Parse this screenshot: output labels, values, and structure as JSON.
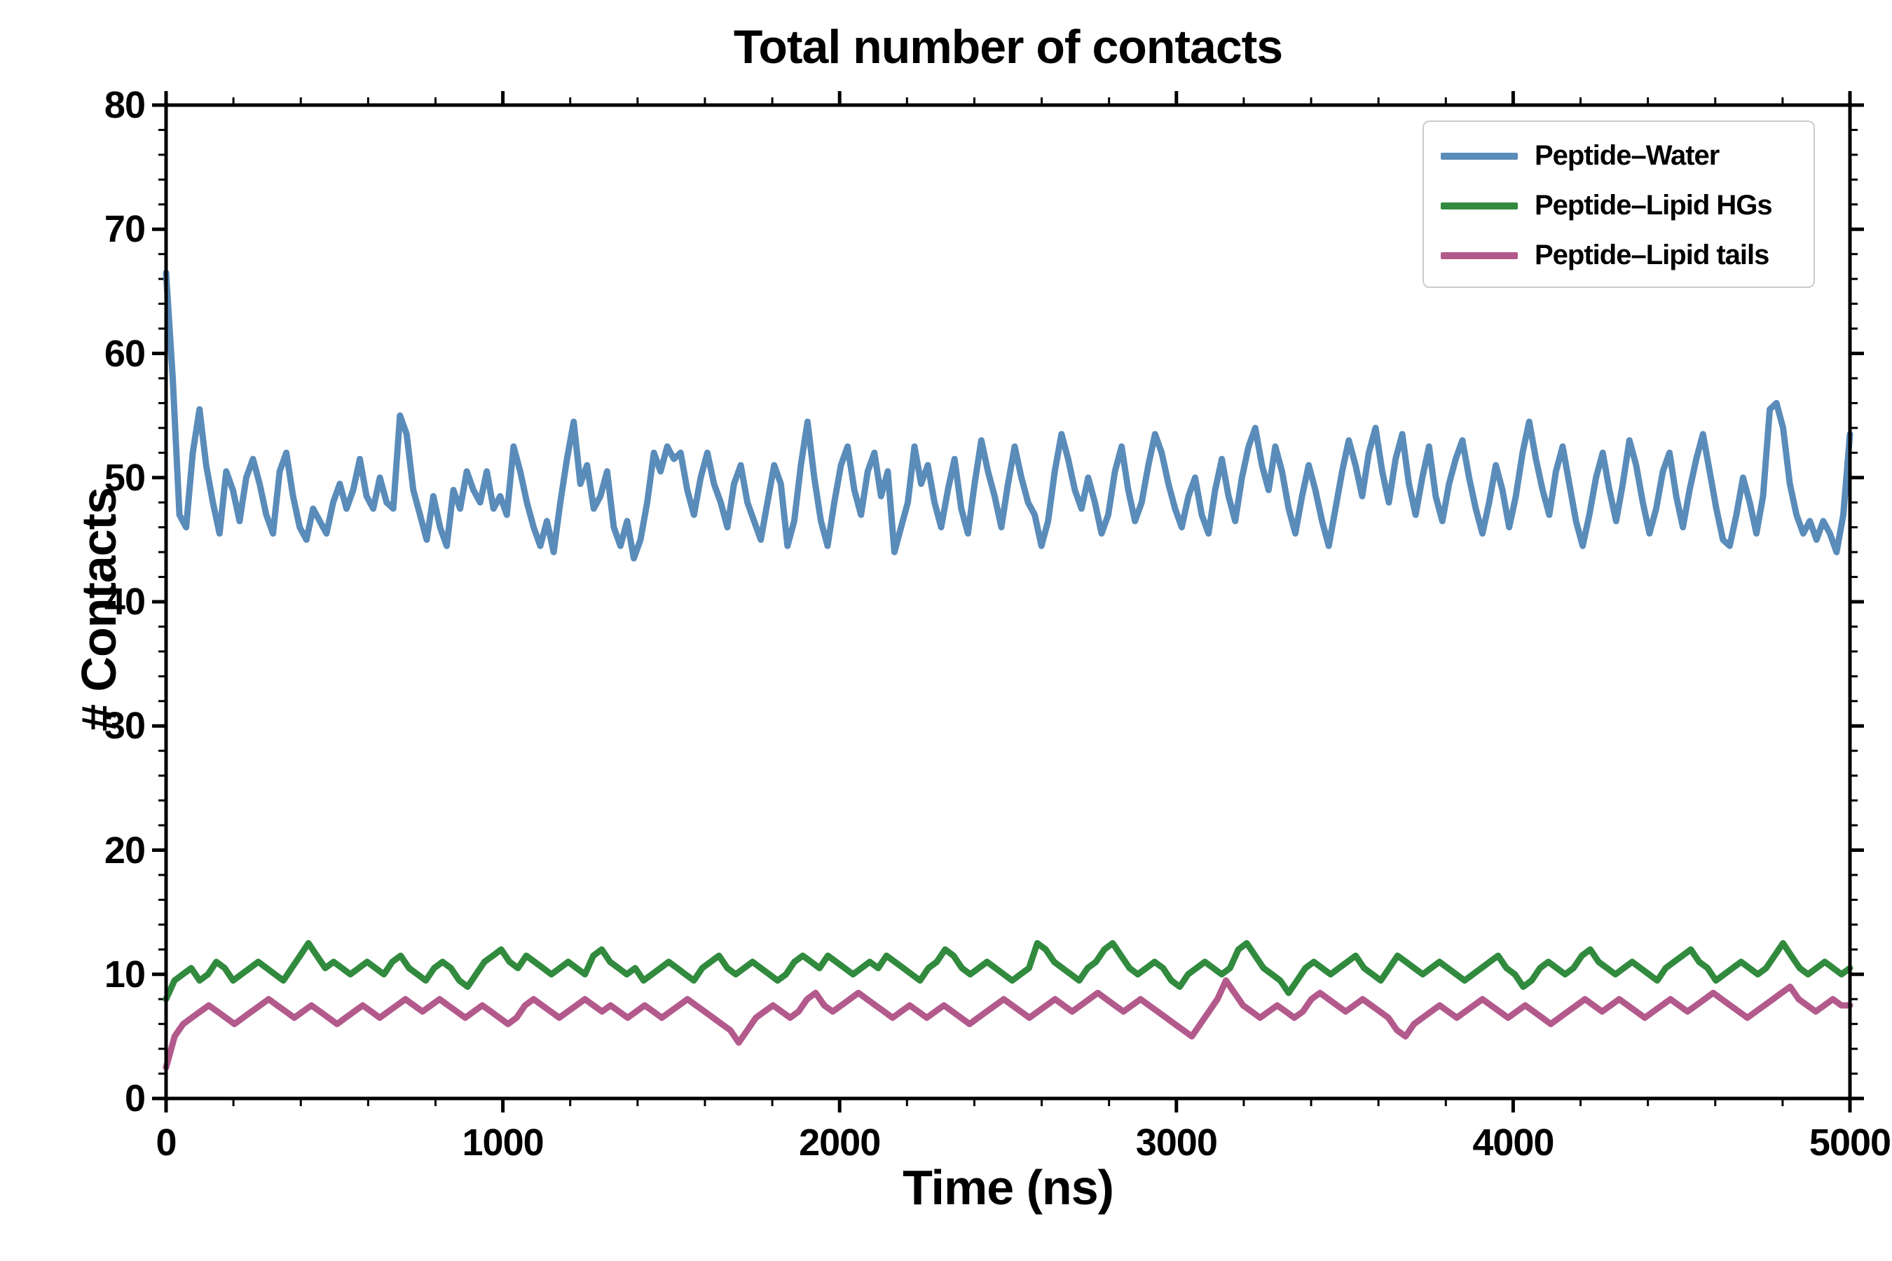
{
  "chart_data": {
    "type": "line",
    "title": "Total number of contacts",
    "xlabel": "Time (ns)",
    "ylabel": "# Contacts",
    "xlim": [
      0,
      5000
    ],
    "ylim": [
      0,
      80
    ],
    "xticks": [
      0,
      1000,
      2000,
      3000,
      4000,
      5000
    ],
    "yticks": [
      0,
      10,
      20,
      30,
      40,
      50,
      60,
      70,
      80
    ],
    "x_minor_step": 200,
    "y_minor_step": 2,
    "grid": false,
    "legend_position": "upper right",
    "series": [
      {
        "name": "Peptide–Water",
        "color": "#5a8cba",
        "values": [
          66.5,
          58,
          47,
          46,
          52,
          55.5,
          51,
          48,
          45.5,
          50.5,
          49,
          46.5,
          50,
          51.5,
          49.5,
          47,
          45.5,
          50.5,
          52,
          48.5,
          46,
          45,
          47.5,
          46.5,
          45.5,
          48,
          49.5,
          47.5,
          49,
          51.5,
          48.5,
          47.5,
          50,
          48,
          47.5,
          55,
          53.5,
          49,
          47,
          45,
          48.5,
          46,
          44.5,
          49,
          47.5,
          50.5,
          49,
          48,
          50.5,
          47.5,
          48.5,
          47,
          52.5,
          50.5,
          48,
          46,
          44.5,
          46.5,
          44,
          48,
          51.5,
          54.5,
          49.5,
          51,
          47.5,
          48.5,
          50.5,
          46,
          44.5,
          46.5,
          43.5,
          45,
          48,
          52,
          50.5,
          52.5,
          51.5,
          52,
          49,
          47,
          50,
          52,
          49.5,
          48,
          46,
          49.5,
          51,
          48,
          46.5,
          45,
          48,
          51,
          49.5,
          44.5,
          46.5,
          51,
          54.5,
          50,
          46.5,
          44.5,
          48,
          51,
          52.5,
          49,
          47,
          50.5,
          52,
          48.5,
          50.5,
          44,
          46,
          48,
          52.5,
          49.5,
          51,
          48,
          46,
          49,
          51.5,
          47.5,
          45.5,
          49.5,
          53,
          50.5,
          48.5,
          46,
          49.5,
          52.5,
          50,
          48,
          47,
          44.5,
          46.5,
          50.5,
          53.5,
          51.5,
          49,
          47.5,
          50,
          48,
          45.5,
          47,
          50.5,
          52.5,
          49,
          46.5,
          48,
          51,
          53.5,
          52,
          49.5,
          47.5,
          46,
          48.5,
          50,
          47,
          45.5,
          49,
          51.5,
          48.5,
          46.5,
          50,
          52.5,
          54,
          51,
          49,
          52.5,
          50.5,
          47.5,
          45.5,
          48.5,
          51,
          49,
          46.5,
          44.5,
          47.5,
          50.5,
          53,
          51,
          48.5,
          52,
          54,
          50.5,
          48,
          51.5,
          53.5,
          49.5,
          47,
          50,
          52.5,
          48.5,
          46.5,
          49.5,
          51.5,
          53,
          50,
          47.5,
          45.5,
          48,
          51,
          49,
          46,
          48.5,
          52,
          54.5,
          51.5,
          49,
          47,
          50.5,
          52.5,
          49.5,
          46.5,
          44.5,
          47,
          50,
          52,
          49,
          46.5,
          49.5,
          53,
          51,
          48,
          45.5,
          47.5,
          50.5,
          52,
          48.5,
          46,
          49,
          51.5,
          53.5,
          50.5,
          47.5,
          45,
          44.5,
          47,
          50,
          48,
          45.5,
          48.5,
          55.5,
          56,
          54,
          49.5,
          47,
          45.5,
          46.5,
          45,
          46.5,
          45.5,
          44,
          47,
          53.5
        ]
      },
      {
        "name": "Peptide–Lipid HGs",
        "color": "#318a3e",
        "values": [
          8,
          9.5,
          10,
          10.5,
          9.5,
          10,
          11,
          10.5,
          9.5,
          10,
          10.5,
          11,
          10.5,
          10,
          9.5,
          10.5,
          11.5,
          12.5,
          11.5,
          10.5,
          11,
          10.5,
          10,
          10.5,
          11,
          10.5,
          10,
          11,
          11.5,
          10.5,
          10,
          9.5,
          10.5,
          11,
          10.5,
          9.5,
          9,
          10,
          11,
          11.5,
          12,
          11,
          10.5,
          11.5,
          11,
          10.5,
          10,
          10.5,
          11,
          10.5,
          10,
          11.5,
          12,
          11,
          10.5,
          10,
          10.5,
          9.5,
          10,
          10.5,
          11,
          10.5,
          10,
          9.5,
          10.5,
          11,
          11.5,
          10.5,
          10,
          10.5,
          11,
          10.5,
          10,
          9.5,
          10,
          11,
          11.5,
          11,
          10.5,
          11.5,
          11,
          10.5,
          10,
          10.5,
          11,
          10.5,
          11.5,
          11,
          10.5,
          10,
          9.5,
          10.5,
          11,
          12,
          11.5,
          10.5,
          10,
          10.5,
          11,
          10.5,
          10,
          9.5,
          10,
          10.5,
          12.5,
          12,
          11,
          10.5,
          10,
          9.5,
          10.5,
          11,
          12,
          12.5,
          11.5,
          10.5,
          10,
          10.5,
          11,
          10.5,
          9.5,
          9,
          10,
          10.5,
          11,
          10.5,
          10,
          10.5,
          12,
          12.5,
          11.5,
          10.5,
          10,
          9.5,
          8.5,
          9.5,
          10.5,
          11,
          10.5,
          10,
          10.5,
          11,
          11.5,
          10.5,
          10,
          9.5,
          10.5,
          11.5,
          11,
          10.5,
          10,
          10.5,
          11,
          10.5,
          10,
          9.5,
          10,
          10.5,
          11,
          11.5,
          10.5,
          10,
          9,
          9.5,
          10.5,
          11,
          10.5,
          10,
          10.5,
          11.5,
          12,
          11,
          10.5,
          10,
          10.5,
          11,
          10.5,
          10,
          9.5,
          10.5,
          11,
          11.5,
          12,
          11,
          10.5,
          9.5,
          10,
          10.5,
          11,
          10.5,
          10,
          10.5,
          11.5,
          12.5,
          11.5,
          10.5,
          10,
          10.5,
          11,
          10.5,
          10,
          10.5
        ]
      },
      {
        "name": "Peptide–Lipid tails",
        "color": "#b35a8c",
        "values": [
          2.5,
          5,
          6,
          6.5,
          7,
          7.5,
          7,
          6.5,
          6,
          6.5,
          7,
          7.5,
          8,
          7.5,
          7,
          6.5,
          7,
          7.5,
          7,
          6.5,
          6,
          6.5,
          7,
          7.5,
          7,
          6.5,
          7,
          7.5,
          8,
          7.5,
          7,
          7.5,
          8,
          7.5,
          7,
          6.5,
          7,
          7.5,
          7,
          6.5,
          6,
          6.5,
          7.5,
          8,
          7.5,
          7,
          6.5,
          7,
          7.5,
          8,
          7.5,
          7,
          7.5,
          7,
          6.5,
          7,
          7.5,
          7,
          6.5,
          7,
          7.5,
          8,
          7.5,
          7,
          6.5,
          6,
          5.5,
          4.5,
          5.5,
          6.5,
          7,
          7.5,
          7,
          6.5,
          7,
          8,
          8.5,
          7.5,
          7,
          7.5,
          8,
          8.5,
          8,
          7.5,
          7,
          6.5,
          7,
          7.5,
          7,
          6.5,
          7,
          7.5,
          7,
          6.5,
          6,
          6.5,
          7,
          7.5,
          8,
          7.5,
          7,
          6.5,
          7,
          7.5,
          8,
          7.5,
          7,
          7.5,
          8,
          8.5,
          8,
          7.5,
          7,
          7.5,
          8,
          7.5,
          7,
          6.5,
          6,
          5.5,
          5,
          6,
          7,
          8,
          9.5,
          8.5,
          7.5,
          7,
          6.5,
          7,
          7.5,
          7,
          6.5,
          7,
          8,
          8.5,
          8,
          7.5,
          7,
          7.5,
          8,
          7.5,
          7,
          6.5,
          5.5,
          5,
          6,
          6.5,
          7,
          7.5,
          7,
          6.5,
          7,
          7.5,
          8,
          7.5,
          7,
          6.5,
          7,
          7.5,
          7,
          6.5,
          6,
          6.5,
          7,
          7.5,
          8,
          7.5,
          7,
          7.5,
          8,
          7.5,
          7,
          6.5,
          7,
          7.5,
          8,
          7.5,
          7,
          7.5,
          8,
          8.5,
          8,
          7.5,
          7,
          6.5,
          7,
          7.5,
          8,
          8.5,
          9,
          8,
          7.5,
          7,
          7.5,
          8,
          7.5,
          7.5
        ]
      }
    ]
  }
}
